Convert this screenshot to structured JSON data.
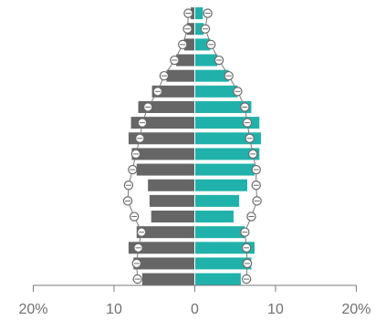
{
  "chart_data": {
    "type": "bar",
    "orientation": "horizontal",
    "subtype": "population-pyramid",
    "x_ticks": [
      "20%",
      "10",
      "0",
      "10",
      "20%"
    ],
    "xlim": [
      -20,
      20
    ],
    "grid": false,
    "legend": "none",
    "series": [
      {
        "side": "left",
        "color": "#666666",
        "values": [
          0.5,
          1.0,
          1.3,
          2.3,
          3.5,
          5.3,
          7.0,
          7.9,
          8.2,
          7.8,
          7.2,
          5.8,
          5.6,
          5.4,
          7.2,
          8.2,
          7.6,
          6.5
        ]
      },
      {
        "side": "right",
        "color": "#20b2aa",
        "values": [
          1.0,
          1.1,
          1.9,
          2.8,
          4.2,
          5.3,
          7.0,
          8.0,
          8.2,
          8.0,
          7.4,
          6.5,
          5.5,
          4.8,
          6.2,
          7.4,
          7.0,
          5.7
        ]
      },
      {
        "side": "left",
        "type": "line",
        "marker": "circle",
        "values": [
          0.8,
          0.9,
          1.5,
          2.5,
          3.8,
          4.6,
          5.8,
          6.5,
          6.8,
          7.3,
          7.7,
          8.2,
          8.3,
          7.5,
          6.6,
          7.0,
          7.2,
          7.1
        ]
      },
      {
        "side": "right",
        "type": "line",
        "marker": "circle",
        "values": [
          1.6,
          1.3,
          2.0,
          3.0,
          4.2,
          5.3,
          6.2,
          6.5,
          6.8,
          7.2,
          7.6,
          7.6,
          7.7,
          7.0,
          6.2,
          6.4,
          6.5,
          6.4
        ]
      }
    ]
  }
}
